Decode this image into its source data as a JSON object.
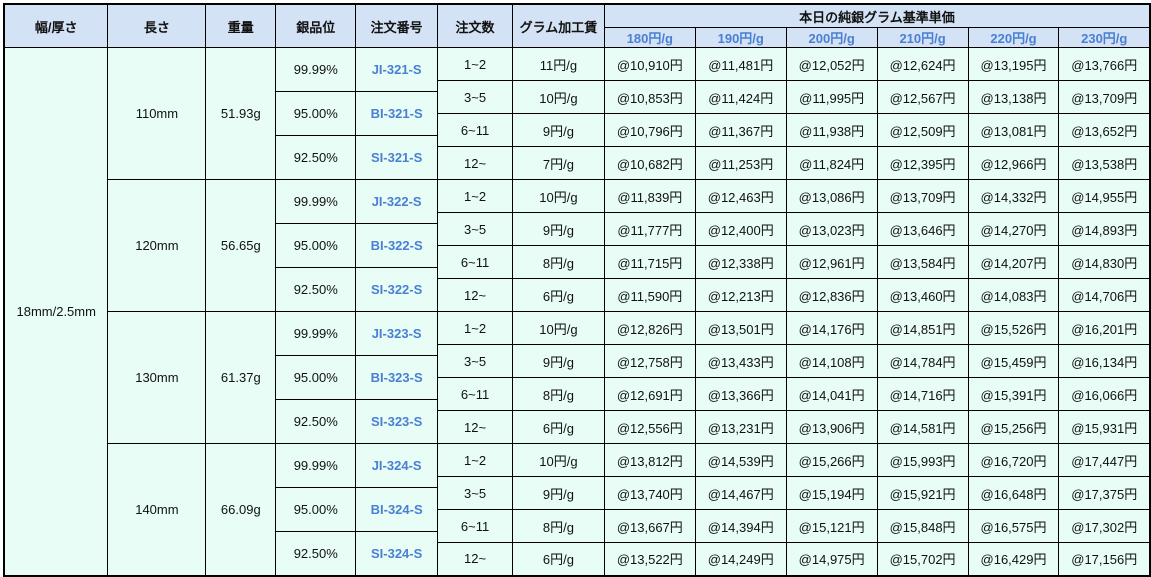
{
  "headers": {
    "width": "幅/厚さ",
    "length": "長さ",
    "weight": "重量",
    "grade": "銀品位",
    "order_no": "注文番号",
    "qty": "注文数",
    "fee": "グラム加工賃",
    "price_group": "本日の純銀グラム基準単価",
    "prices": [
      "180円/g",
      "190円/g",
      "200円/g",
      "210円/g",
      "220円/g",
      "230円/g"
    ]
  },
  "width_value": "18mm/2.5mm",
  "colors": {
    "header_bg": "#d3e2f4",
    "body_bg": "#e7fdf6",
    "accent": "#4a7fd4"
  },
  "groups": [
    {
      "length": "110mm",
      "weight": "51.93g",
      "grades": [
        {
          "grade": "99.99%",
          "code": "JI-321-S"
        },
        {
          "grade": "95.00%",
          "code": "BI-321-S"
        },
        {
          "grade": "92.50%",
          "code": "SI-321-S"
        }
      ],
      "rows": [
        {
          "qty": "1~2",
          "fee": "11円/g",
          "prices": [
            "@10,910円",
            "@11,481円",
            "@12,052円",
            "@12,624円",
            "@13,195円",
            "@13,766円"
          ]
        },
        {
          "qty": "3~5",
          "fee": "10円/g",
          "prices": [
            "@10,853円",
            "@11,424円",
            "@11,995円",
            "@12,567円",
            "@13,138円",
            "@13,709円"
          ]
        },
        {
          "qty": "6~11",
          "fee": "9円/g",
          "prices": [
            "@10,796円",
            "@11,367円",
            "@11,938円",
            "@12,509円",
            "@13,081円",
            "@13,652円"
          ]
        },
        {
          "qty": "12~",
          "fee": "7円/g",
          "prices": [
            "@10,682円",
            "@11,253円",
            "@11,824円",
            "@12,395円",
            "@12,966円",
            "@13,538円"
          ]
        }
      ]
    },
    {
      "length": "120mm",
      "weight": "56.65g",
      "grades": [
        {
          "grade": "99.99%",
          "code": "JI-322-S"
        },
        {
          "grade": "95.00%",
          "code": "BI-322-S"
        },
        {
          "grade": "92.50%",
          "code": "SI-322-S"
        }
      ],
      "rows": [
        {
          "qty": "1~2",
          "fee": "10円/g",
          "prices": [
            "@11,839円",
            "@12,463円",
            "@13,086円",
            "@13,709円",
            "@14,332円",
            "@14,955円"
          ]
        },
        {
          "qty": "3~5",
          "fee": "9円/g",
          "prices": [
            "@11,777円",
            "@12,400円",
            "@13,023円",
            "@13,646円",
            "@14,270円",
            "@14,893円"
          ]
        },
        {
          "qty": "6~11",
          "fee": "8円/g",
          "prices": [
            "@11,715円",
            "@12,338円",
            "@12,961円",
            "@13,584円",
            "@14,207円",
            "@14,830円"
          ]
        },
        {
          "qty": "12~",
          "fee": "6円/g",
          "prices": [
            "@11,590円",
            "@12,213円",
            "@12,836円",
            "@13,460円",
            "@14,083円",
            "@14,706円"
          ]
        }
      ]
    },
    {
      "length": "130mm",
      "weight": "61.37g",
      "grades": [
        {
          "grade": "99.99%",
          "code": "JI-323-S"
        },
        {
          "grade": "95.00%",
          "code": "BI-323-S"
        },
        {
          "grade": "92.50%",
          "code": "SI-323-S"
        }
      ],
      "rows": [
        {
          "qty": "1~2",
          "fee": "10円/g",
          "prices": [
            "@12,826円",
            "@13,501円",
            "@14,176円",
            "@14,851円",
            "@15,526円",
            "@16,201円"
          ]
        },
        {
          "qty": "3~5",
          "fee": "9円/g",
          "prices": [
            "@12,758円",
            "@13,433円",
            "@14,108円",
            "@14,784円",
            "@15,459円",
            "@16,134円"
          ]
        },
        {
          "qty": "6~11",
          "fee": "8円/g",
          "prices": [
            "@12,691円",
            "@13,366円",
            "@14,041円",
            "@14,716円",
            "@15,391円",
            "@16,066円"
          ]
        },
        {
          "qty": "12~",
          "fee": "6円/g",
          "prices": [
            "@12,556円",
            "@13,231円",
            "@13,906円",
            "@14,581円",
            "@15,256円",
            "@15,931円"
          ]
        }
      ]
    },
    {
      "length": "140mm",
      "weight": "66.09g",
      "grades": [
        {
          "grade": "99.99%",
          "code": "JI-324-S"
        },
        {
          "grade": "95.00%",
          "code": "BI-324-S"
        },
        {
          "grade": "92.50%",
          "code": "SI-324-S"
        }
      ],
      "rows": [
        {
          "qty": "1~2",
          "fee": "10円/g",
          "prices": [
            "@13,812円",
            "@14,539円",
            "@15,266円",
            "@15,993円",
            "@16,720円",
            "@17,447円"
          ]
        },
        {
          "qty": "3~5",
          "fee": "9円/g",
          "prices": [
            "@13,740円",
            "@14,467円",
            "@15,194円",
            "@15,921円",
            "@16,648円",
            "@17,375円"
          ]
        },
        {
          "qty": "6~11",
          "fee": "8円/g",
          "prices": [
            "@13,667円",
            "@14,394円",
            "@15,121円",
            "@15,848円",
            "@16,575円",
            "@17,302円"
          ]
        },
        {
          "qty": "12~",
          "fee": "6円/g",
          "prices": [
            "@13,522円",
            "@14,249円",
            "@14,975円",
            "@15,702円",
            "@16,429円",
            "@17,156円"
          ]
        }
      ]
    }
  ]
}
